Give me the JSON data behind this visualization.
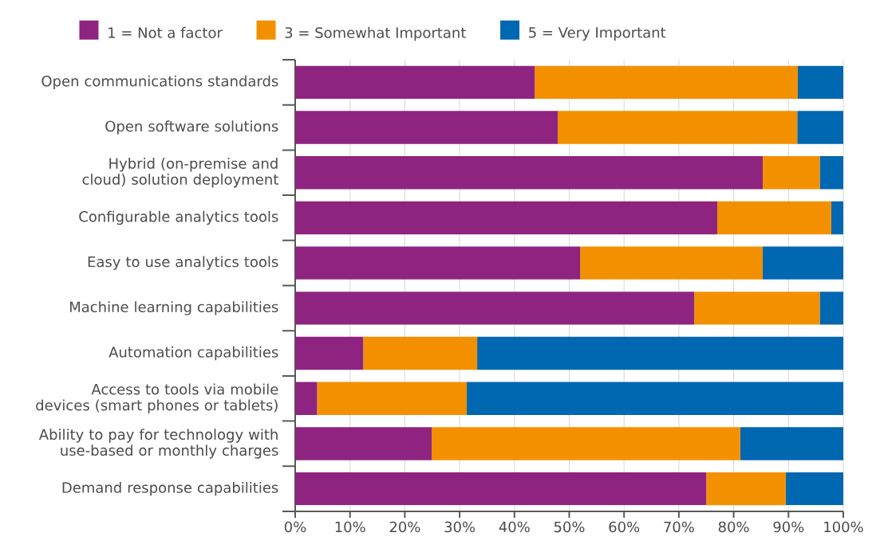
{
  "chart_data": {
    "type": "bar",
    "orientation": "horizontal",
    "stacked": true,
    "categories": [
      "Open communications standards",
      "Open software solutions",
      "Hybrid (on-premise and cloud) solution deployment",
      "Configurable analytics tools",
      "Easy to use analytics tools",
      "Machine learning capabilities",
      "Automation capabilities",
      "Access to tools via mobile devices (smart phones or tablets)",
      "Ability to pay for technology with use-based or monthly charges",
      "Demand response capabilities"
    ],
    "series": [
      {
        "name": "1 = Not a factor",
        "color": "#8e2480",
        "values": [
          43.7,
          47.9,
          85.3,
          77.0,
          52.0,
          72.8,
          12.4,
          4.0,
          24.9,
          75.0
        ]
      },
      {
        "name": "3 = Somewhat Important",
        "color": "#f39000",
        "values": [
          48.0,
          43.7,
          10.4,
          20.8,
          33.3,
          22.9,
          20.8,
          27.3,
          56.3,
          14.5
        ]
      },
      {
        "name": "5 = Very Important",
        "color": "#0067b1",
        "values": [
          8.3,
          8.4,
          4.3,
          2.2,
          14.7,
          4.3,
          66.8,
          68.7,
          18.8,
          10.5
        ]
      }
    ],
    "xlim": [
      0,
      100
    ],
    "xticks": [
      {
        "value": 0,
        "label": "0%"
      },
      {
        "value": 10,
        "label": "10%"
      },
      {
        "value": 20,
        "label": "20%"
      },
      {
        "value": 30,
        "label": "30%"
      },
      {
        "value": 40,
        "label": "40%"
      },
      {
        "value": 50,
        "label": "50%"
      },
      {
        "value": 60,
        "label": "60%"
      },
      {
        "value": 70,
        "label": "70%"
      },
      {
        "value": 80,
        "label": "80%"
      },
      {
        "value": 90,
        "label": "90%"
      },
      {
        "value": 100,
        "label": "100%"
      }
    ],
    "grid": "x",
    "legend": "top"
  }
}
